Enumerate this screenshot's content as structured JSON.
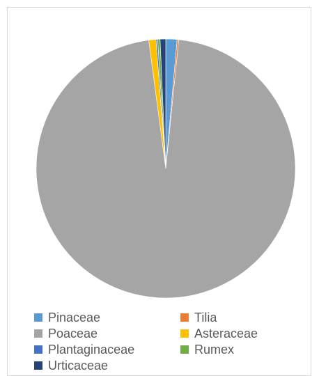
{
  "chart_data": {
    "type": "pie",
    "title": "",
    "categories": [
      "Pinaceae",
      "Tilia",
      "Poaceae",
      "Asteraceae",
      "Plantaginaceae",
      "Rumex",
      "Urticaceae"
    ],
    "values": [
      1.4,
      0.2,
      96.3,
      0.9,
      0.2,
      0.3,
      0.7
    ],
    "colors": [
      "#5b9bd5",
      "#ed7d31",
      "#a5a5a5",
      "#ffc000",
      "#4472c4",
      "#70ad47",
      "#264478"
    ],
    "legend_position": "bottom"
  }
}
